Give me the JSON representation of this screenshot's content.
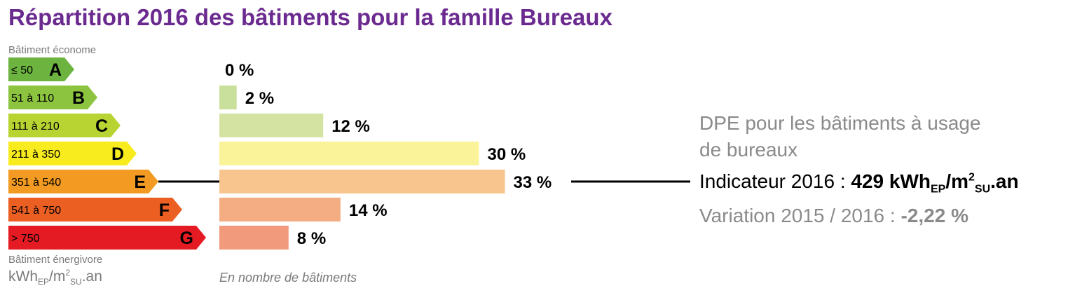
{
  "title": "Répartition 2016 des bâtiments pour la famille Bureaux",
  "left_top_label": "Bâtiment économe",
  "left_bottom_label": "Bâtiment énergivore",
  "unit": {
    "base": "kWh",
    "sub1": "EP",
    "mid": "/m",
    "sup": "2",
    "sub2": "SU",
    "end": ".an"
  },
  "caption": "En nombre de bâtiments",
  "chart_data": {
    "type": "bar",
    "orientation": "horizontal",
    "categories": [
      "A",
      "B",
      "C",
      "D",
      "E",
      "F",
      "G"
    ],
    "ranges": [
      "≤ 50",
      "51 à 110",
      "111 à 210",
      "211 à 350",
      "351 à 540",
      "541 à 750",
      "> 750"
    ],
    "values": [
      0,
      2,
      12,
      30,
      33,
      14,
      8
    ],
    "value_labels": [
      "0 %",
      "2 %",
      "12 %",
      "30 %",
      "33 %",
      "14 %",
      "8 %"
    ],
    "arrow_colors": [
      "#6cb33f",
      "#8cc43f",
      "#b8d432",
      "#f8ec1e",
      "#f29a21",
      "#ec5f23",
      "#e51b24"
    ],
    "bar_colors": [
      "#d2e4ae",
      "#c9df9c",
      "#d4e3a2",
      "#fbf39a",
      "#f8c58e",
      "#f4ad83",
      "#f19a7c"
    ],
    "highlight": "E"
  },
  "right_box": {
    "heading_line1": "DPE pour les bâtiments à usage",
    "heading_line2": "de bureaux",
    "indicator_prefix": "Indicateur 2016 :",
    "indicator_value": "429 kWh",
    "indicator_sub1": "EP",
    "indicator_mid": "/m",
    "indicator_sup": "2",
    "indicator_sub2": "SU",
    "indicator_end": ".an",
    "variation_prefix": "Variation 2015 / 2016 :",
    "variation_value": "-2,22 %"
  }
}
